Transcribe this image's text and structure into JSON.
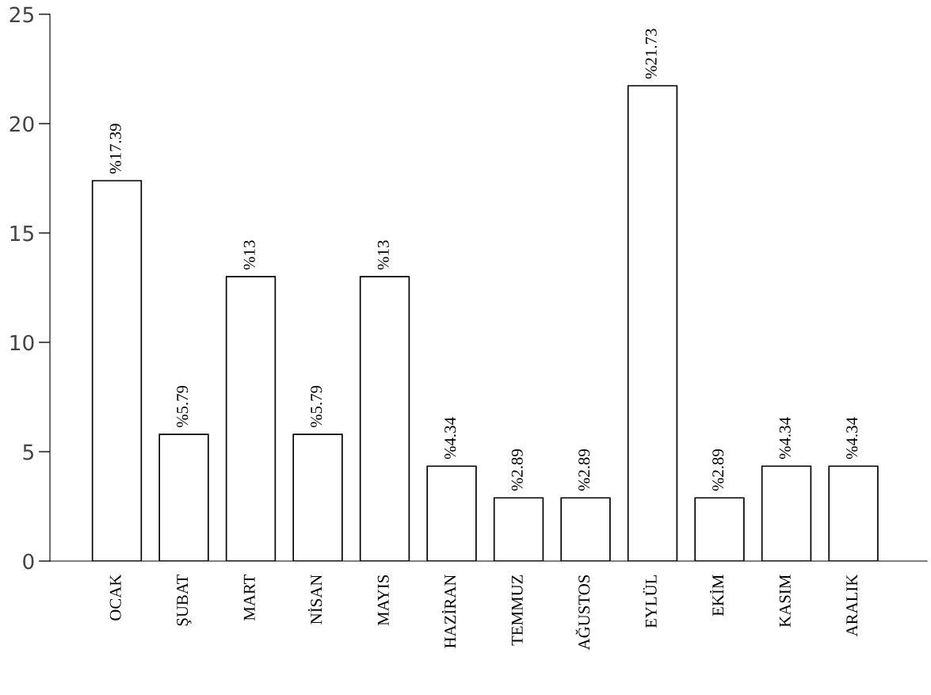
{
  "chart_data": {
    "type": "bar",
    "categories": [
      "OCAK",
      "ŞUBAT",
      "MART",
      "NİSAN",
      "MAYIS",
      "HAZİRAN",
      "TEMMUZ",
      "AĞUSTOS",
      "EYLÜL",
      "EKİM",
      "KASIM",
      "ARALIK"
    ],
    "values": [
      17.39,
      5.79,
      13,
      5.79,
      13,
      4.34,
      2.89,
      2.89,
      21.73,
      2.89,
      4.34,
      4.34
    ],
    "value_labels": [
      "%17.39",
      "%5.79",
      "%13",
      "%5.79",
      "%13",
      "%4.34",
      "%2.89",
      "%2.89",
      "%21.73",
      "%2.89",
      "%4.34",
      "%4.34"
    ],
    "color": "#ffffff",
    "ylim": [
      0,
      25
    ],
    "yticks": [
      0,
      5,
      10,
      15,
      20,
      25
    ],
    "grid": false,
    "legend": false
  }
}
